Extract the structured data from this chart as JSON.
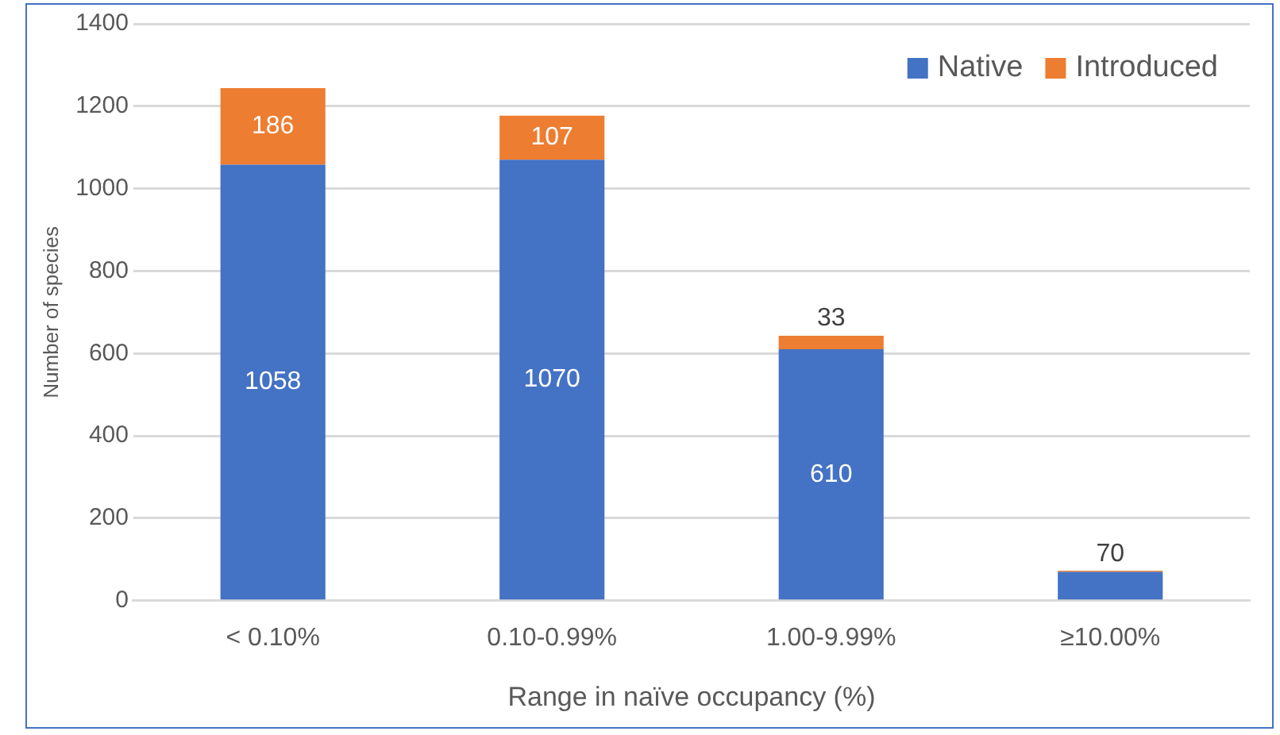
{
  "chart_data": {
    "type": "bar",
    "stacked": true,
    "xlabel": "Range in naïve occupancy (%)",
    "ylabel": "Number of species",
    "categories": [
      "< 0.10%",
      "0.10-0.99%",
      "1.00-9.99%",
      "≥10.00%"
    ],
    "series": [
      {
        "name": "Native",
        "color": "#4472c4",
        "values": [
          1058,
          1070,
          610,
          70
        ],
        "value_labels": [
          "1058",
          "1070",
          "610",
          "70"
        ]
      },
      {
        "name": "Introduced",
        "color": "#ed7d31",
        "values": [
          186,
          107,
          33,
          3
        ],
        "value_labels": [
          "186",
          "107",
          "33",
          null
        ]
      }
    ],
    "ylim": [
      0,
      1400
    ],
    "yticks": [
      0,
      200,
      400,
      600,
      800,
      1000,
      1200,
      1400
    ],
    "grid": "y",
    "legend": "top right"
  }
}
